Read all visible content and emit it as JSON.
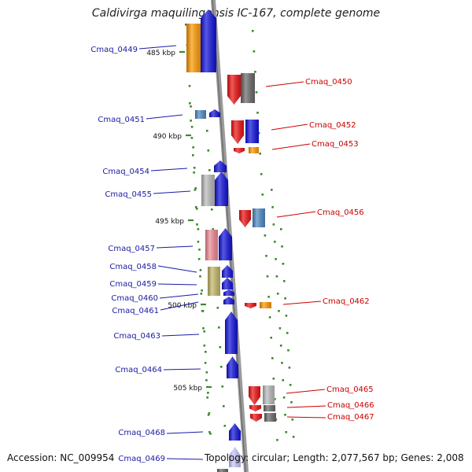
{
  "title": "Caldivirga maquilingensis IC-167, complete genome",
  "footer": {
    "accession": "Accession: NC_009954",
    "summary": "Topology: circular; Length: 2,077,567 bp; Genes: 2,008"
  },
  "colors": {
    "backbone": "#8a8a8a",
    "left_label": "#1a1aa6",
    "right_label": "#cc0000",
    "dot": "#3a8a2a",
    "blue": "#1111dd",
    "red": "#ee1111",
    "orange": "#ff9900",
    "gray": "#6a6a6a",
    "lightgray": "#bbbbbb",
    "steelblue": "#4d8ac4",
    "pink": "#f08a96",
    "olive": "#c4b868",
    "lavender": "#c8c8ff"
  },
  "scale_labels": [
    {
      "text": "485 kbp"
    },
    {
      "text": "490 kbp"
    },
    {
      "text": "495 kbp"
    },
    {
      "text": "500 kbp"
    },
    {
      "text": "505 kbp"
    }
  ],
  "genes": {
    "cmaq_0449": {
      "label": "Cmaq_0449",
      "side": "left"
    },
    "cmaq_0450": {
      "label": "Cmaq_0450",
      "side": "right"
    },
    "cmaq_0451": {
      "label": "Cmaq_0451",
      "side": "left"
    },
    "cmaq_0452": {
      "label": "Cmaq_0452",
      "side": "right"
    },
    "cmaq_0453": {
      "label": "Cmaq_0453",
      "side": "right"
    },
    "cmaq_0454": {
      "label": "Cmaq_0454",
      "side": "left"
    },
    "cmaq_0455": {
      "label": "Cmaq_0455",
      "side": "left"
    },
    "cmaq_0456": {
      "label": "Cmaq_0456",
      "side": "right"
    },
    "cmaq_0457": {
      "label": "Cmaq_0457",
      "side": "left"
    },
    "cmaq_0458": {
      "label": "Cmaq_0458",
      "side": "left"
    },
    "cmaq_0459": {
      "label": "Cmaq_0459",
      "side": "left"
    },
    "cmaq_0460": {
      "label": "Cmaq_0460",
      "side": "left"
    },
    "cmaq_0461": {
      "label": "Cmaq_0461",
      "side": "left"
    },
    "cmaq_0462": {
      "label": "Cmaq_0462",
      "side": "right"
    },
    "cmaq_0463": {
      "label": "Cmaq_0463",
      "side": "left"
    },
    "cmaq_0464": {
      "label": "Cmaq_0464",
      "side": "left"
    },
    "cmaq_0465": {
      "label": "Cmaq_0465",
      "side": "right"
    },
    "cmaq_0466": {
      "label": "Cmaq_0466",
      "side": "right"
    },
    "cmaq_0467": {
      "label": "Cmaq_0467",
      "side": "right"
    },
    "cmaq_0468": {
      "label": "Cmaq_0468",
      "side": "left"
    },
    "cmaq_0469": {
      "label": "Cmaq_0469",
      "side": "left"
    }
  }
}
